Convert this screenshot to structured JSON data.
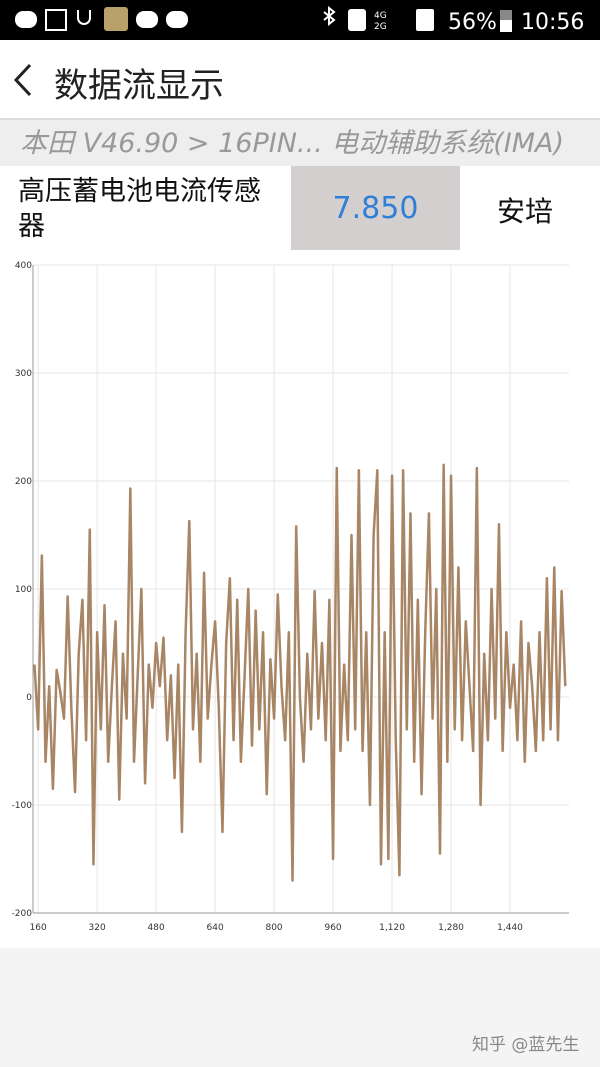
{
  "status_bar": {
    "network_top": "4G",
    "network_bottom": "2G",
    "battery": "56%",
    "time": "10:56"
  },
  "header": {
    "title": "数据流显示"
  },
  "breadcrumb": "本田 V46.90 > 16PIN... 电动辅助系统(IMA)",
  "sensor": {
    "name": "高压蓄电池电流传感器",
    "value": "7.850",
    "unit": "安培"
  },
  "watermark": "知乎 @蓝先生",
  "chart_data": {
    "type": "line",
    "x": [
      150,
      160,
      170,
      180,
      190,
      200,
      210,
      220,
      230,
      240,
      250,
      260,
      270,
      280,
      290,
      300,
      310,
      320,
      330,
      340,
      350,
      360,
      370,
      380,
      390,
      400,
      410,
      420,
      430,
      440,
      450,
      460,
      470,
      480,
      490,
      500,
      510,
      520,
      530,
      540,
      550,
      560,
      570,
      580,
      590,
      600,
      610,
      620,
      630,
      640,
      650,
      660,
      670,
      680,
      690,
      700,
      710,
      720,
      730,
      740,
      750,
      760,
      770,
      780,
      790,
      800,
      810,
      820,
      830,
      840,
      850,
      860,
      870,
      880,
      890,
      900,
      910,
      920,
      930,
      940,
      950,
      960,
      970,
      980,
      990,
      1000,
      1010,
      1020,
      1030,
      1040,
      1050,
      1060,
      1070,
      1080,
      1090,
      1100,
      1110,
      1120,
      1130,
      1140,
      1150,
      1160,
      1170,
      1180,
      1190,
      1200,
      1210,
      1220,
      1230,
      1240,
      1250,
      1260,
      1270,
      1280,
      1290,
      1300,
      1310,
      1320,
      1330,
      1340,
      1350,
      1360,
      1370,
      1380,
      1390,
      1400,
      1410,
      1420,
      1430,
      1440,
      1450,
      1460,
      1470,
      1480,
      1490,
      1500,
      1510,
      1520,
      1530,
      1540,
      1550,
      1560,
      1570,
      1580,
      1590
    ],
    "values": [
      30,
      -30,
      131,
      -60,
      10,
      -85,
      25,
      5,
      -20,
      93,
      -10,
      -88,
      40,
      90,
      -40,
      155,
      -155,
      60,
      -30,
      85,
      -60,
      10,
      70,
      -95,
      40,
      -20,
      193,
      -60,
      20,
      100,
      -80,
      30,
      -10,
      50,
      10,
      55,
      -40,
      20,
      -75,
      30,
      -125,
      60,
      163,
      -30,
      40,
      -60,
      115,
      -20,
      30,
      70,
      -10,
      -125,
      50,
      110,
      -40,
      90,
      -60,
      20,
      100,
      -45,
      80,
      -30,
      60,
      -90,
      35,
      -20,
      95,
      10,
      -40,
      60,
      -170,
      158,
      0,
      -60,
      40,
      -30,
      98,
      -20,
      50,
      -40,
      90,
      -150,
      212,
      -50,
      30,
      -40,
      150,
      -30,
      210,
      -50,
      60,
      -100,
      150,
      210,
      -155,
      60,
      -150,
      205,
      -40,
      -165,
      210,
      -30,
      170,
      -60,
      90,
      -90,
      60,
      170,
      -20,
      100,
      -145,
      215,
      -60,
      205,
      -30,
      120,
      -40,
      70,
      10,
      -50,
      212,
      -100,
      40,
      -40,
      100,
      -20,
      160,
      -50,
      60,
      -10,
      30,
      -40,
      70,
      -60,
      50,
      10,
      -50,
      60,
      -40,
      110,
      -30,
      120,
      -40,
      98,
      10
    ],
    "color": "#a88565",
    "xlim": [
      146,
      1600
    ],
    "ylim": [
      -200,
      400
    ],
    "xticks": [
      160,
      320,
      480,
      640,
      800,
      960,
      {
        "value": 1120,
        "label": "1,120"
      },
      {
        "value": 1280,
        "label": "1,280"
      },
      {
        "value": 1440,
        "label": "1,440"
      }
    ],
    "yticks": [
      -200,
      -100,
      0,
      100,
      200,
      300,
      400
    ],
    "grid": true
  }
}
